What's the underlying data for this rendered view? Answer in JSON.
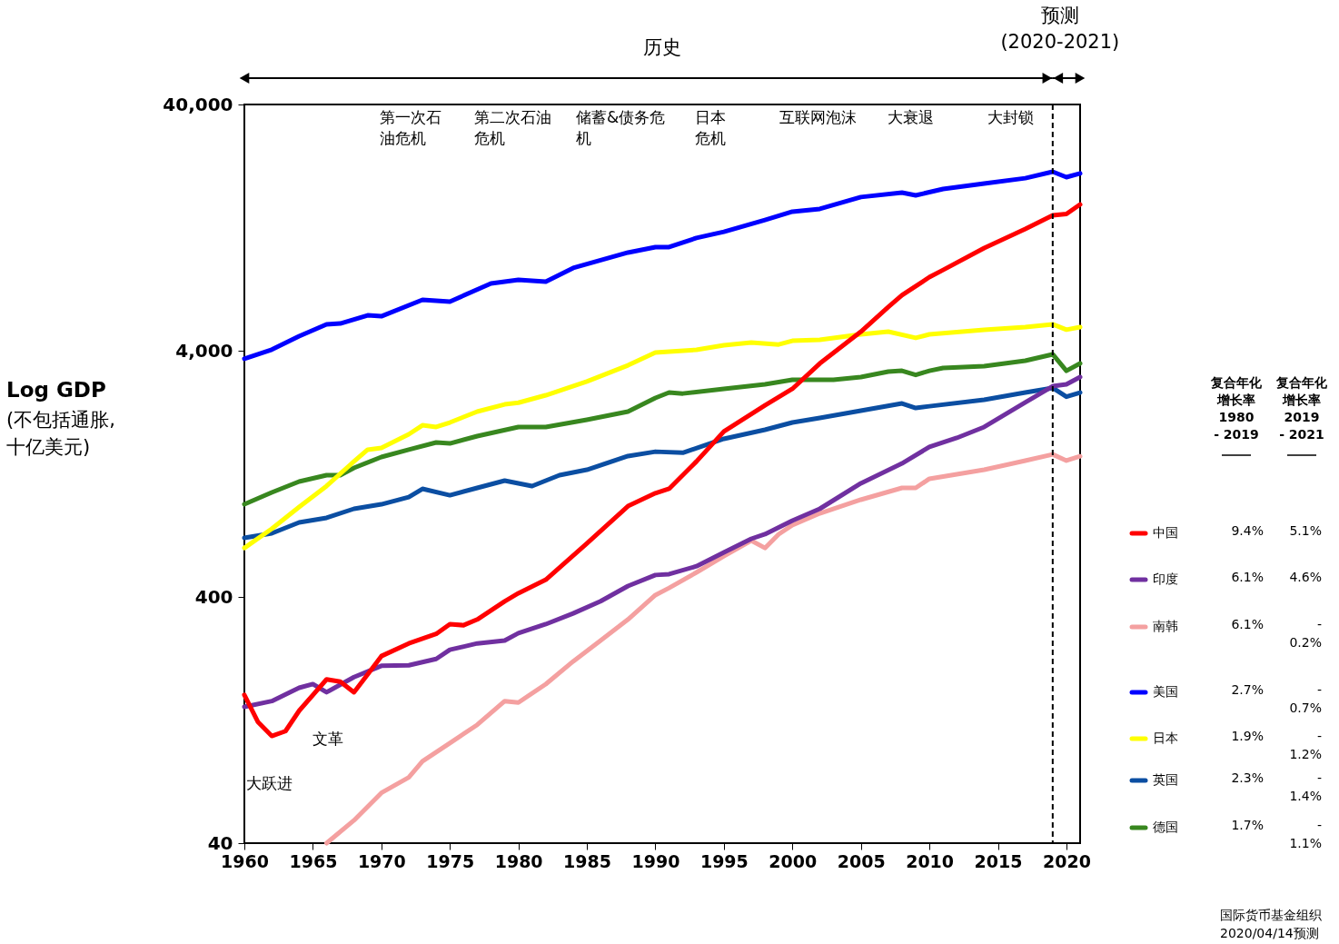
{
  "chart_data": {
    "type": "line",
    "ylabel": "Log GDP\n(不包括通胀,\n十亿美元)",
    "xlim": [
      1960,
      2021
    ],
    "ylim": [
      40,
      40000
    ],
    "log": true,
    "grid": false,
    "legend": "right",
    "line_style": "solid",
    "xticks": [
      1960,
      1965,
      1970,
      1975,
      1980,
      1985,
      1990,
      1995,
      2000,
      2005,
      2010,
      2015,
      2020
    ],
    "yticks": [
      40,
      400,
      {
        "value": 4000,
        "label": "4,000"
      },
      {
        "value": 40000,
        "label": "40,000"
      }
    ],
    "series": [
      {
        "name": "中国",
        "color": "#ff0000",
        "x": [
          1960,
          1961,
          1962,
          1963,
          1964,
          1966,
          1967,
          1968,
          1969,
          1970,
          1972,
          1974,
          1975,
          1976,
          1977,
          1979,
          1980,
          1982,
          1985,
          1988,
          1990,
          1991,
          1993,
          1995,
          1998,
          2000,
          2002,
          2005,
          2007,
          2008,
          2010,
          2011,
          2014,
          2017,
          2019,
          2020,
          2021
        ],
        "values": [
          160,
          124,
          109,
          114,
          138,
          185,
          181,
          164,
          194,
          230,
          259,
          283,
          310,
          307,
          324,
          384,
          414,
          470,
          660,
          935,
          1055,
          1100,
          1420,
          1880,
          2400,
          2800,
          3550,
          4780,
          6020,
          6720,
          7960,
          8510,
          10450,
          12480,
          14190,
          14360,
          15700
        ]
      },
      {
        "name": "印度",
        "color": "#7030a0",
        "x": [
          1960,
          1962,
          1964,
          1965,
          1966,
          1968,
          1970,
          1972,
          1974,
          1975,
          1977,
          1979,
          1980,
          1982,
          1984,
          1986,
          1988,
          1990,
          1991,
          1993,
          1995,
          1997,
          1998,
          2000,
          2002,
          2005,
          2008,
          2010,
          2012,
          2014,
          2017,
          2019,
          2020,
          2021
        ],
        "values": [
          143,
          151,
          171,
          177,
          164,
          189,
          210,
          211,
          224,
          244,
          259,
          266,
          285,
          310,
          343,
          384,
          443,
          491,
          495,
          533,
          607,
          689,
          719,
          817,
          912,
          1157,
          1394,
          1626,
          1770,
          1960,
          2465,
          2871,
          2920,
          3126
        ]
      },
      {
        "name": "南韩",
        "color": "#f4a0a0",
        "x": [
          1966,
          1968,
          1970,
          1972,
          1973,
          1975,
          1977,
          1979,
          1980,
          1982,
          1984,
          1986,
          1988,
          1990,
          1991,
          1993,
          1995,
          1997,
          1998,
          1999,
          2000,
          2002,
          2005,
          2008,
          2009,
          2010,
          2014,
          2017,
          2019,
          2020,
          2021
        ],
        "values": [
          40,
          49.5,
          64,
          74,
          86,
          102,
          121,
          151,
          149,
          177,
          219,
          266,
          324,
          407,
          435,
          503,
          586,
          677,
          632,
          719,
          783,
          874,
          993,
          1109,
          1109,
          1208,
          1314,
          1431,
          1517,
          1431,
          1490
        ]
      },
      {
        "name": "美国",
        "color": "#0000ff",
        "x": [
          1960,
          1962,
          1964,
          1966,
          1967,
          1969,
          1970,
          1973,
          1975,
          1978,
          1980,
          1982,
          1984,
          1988,
          1990,
          1991,
          1993,
          1995,
          1998,
          2000,
          2002,
          2005,
          2008,
          2009,
          2011,
          2014,
          2017,
          2019,
          2020,
          2021
        ],
        "values": [
          3710,
          4040,
          4580,
          5120,
          5160,
          5570,
          5520,
          6440,
          6330,
          7500,
          7760,
          7630,
          8670,
          10020,
          10540,
          10540,
          11480,
          12160,
          13590,
          14690,
          15070,
          16830,
          17540,
          17100,
          18150,
          19100,
          20080,
          21330,
          20270,
          20990
        ]
      },
      {
        "name": "日本",
        "color": "#ffff00",
        "x": [
          1960,
          1962,
          1964,
          1966,
          1968,
          1969,
          1970,
          1972,
          1973,
          1974,
          1975,
          1977,
          1979,
          1980,
          1982,
          1985,
          1988,
          1990,
          1993,
          1995,
          1997,
          1999,
          2000,
          2002,
          2005,
          2007,
          2009,
          2010,
          2014,
          2017,
          2019,
          2020,
          2021
        ],
        "values": [
          632,
          757,
          927,
          1128,
          1419,
          1585,
          1612,
          1831,
          1992,
          1960,
          2044,
          2264,
          2421,
          2460,
          2637,
          3000,
          3490,
          3935,
          4035,
          4210,
          4320,
          4240,
          4390,
          4430,
          4660,
          4780,
          4510,
          4660,
          4860,
          4990,
          5120,
          4870,
          4990
        ]
      },
      {
        "name": "英国",
        "color": "#0b4ea2",
        "x": [
          1960,
          1962,
          1964,
          1966,
          1968,
          1970,
          1972,
          1973,
          1975,
          1977,
          1979,
          1981,
          1983,
          1985,
          1988,
          1990,
          1992,
          1995,
          1998,
          2000,
          2002,
          2005,
          2008,
          2009,
          2010,
          2014,
          2017,
          2019,
          2020,
          2021
        ],
        "values": [
          695,
          725,
          803,
          838,
          912,
          951,
          1018,
          1099,
          1035,
          1109,
          1187,
          1128,
          1249,
          1314,
          1493,
          1556,
          1540,
          1755,
          1910,
          2044,
          2133,
          2283,
          2443,
          2340,
          2380,
          2530,
          2705,
          2825,
          2600,
          2705
        ]
      },
      {
        "name": "德国",
        "color": "#38871f",
        "x": [
          1960,
          1962,
          1964,
          1966,
          1967,
          1968,
          1970,
          1972,
          1974,
          1975,
          1977,
          1980,
          1982,
          1985,
          1988,
          1990,
          1991,
          1992,
          1995,
          1998,
          2000,
          2003,
          2005,
          2007,
          2008,
          2009,
          2010,
          2011,
          2014,
          2017,
          2019,
          2020,
          2021
        ],
        "values": [
          951,
          1063,
          1177,
          1249,
          1249,
          1337,
          1480,
          1585,
          1696,
          1680,
          1800,
          1960,
          1960,
          2098,
          2264,
          2572,
          2705,
          2680,
          2800,
          2921,
          3048,
          3048,
          3126,
          3290,
          3315,
          3190,
          3315,
          3404,
          3462,
          3642,
          3868,
          3315,
          3551
        ]
      }
    ],
    "ref_lines": [
      {
        "axis": "x",
        "value": 2019,
        "color": "#000000",
        "line_style": "dashed"
      }
    ],
    "annotations": [
      "历史",
      "预测\n(2020-2021)",
      "第一次石油危机",
      "第二次石油危机",
      "储蓄&债务危机",
      "日本危机",
      "互联网泡沫",
      "大衰退",
      "大封锁",
      "大跃进",
      "文革",
      "复合年化增长率\n1980\n- 2019",
      "复合年化增长率\n2019\n- 2021",
      "9.4%",
      "5.1%",
      "6.1%",
      "4.6%",
      "6.1%",
      "-\n0.2%",
      "2.7%",
      "-\n0.7%",
      "1.9%",
      "-\n1.2%",
      "2.3%",
      "-\n1.4%",
      "1.7%",
      "-\n1.1%",
      "国际货币基金组织\n2020/04/14预测"
    ]
  }
}
